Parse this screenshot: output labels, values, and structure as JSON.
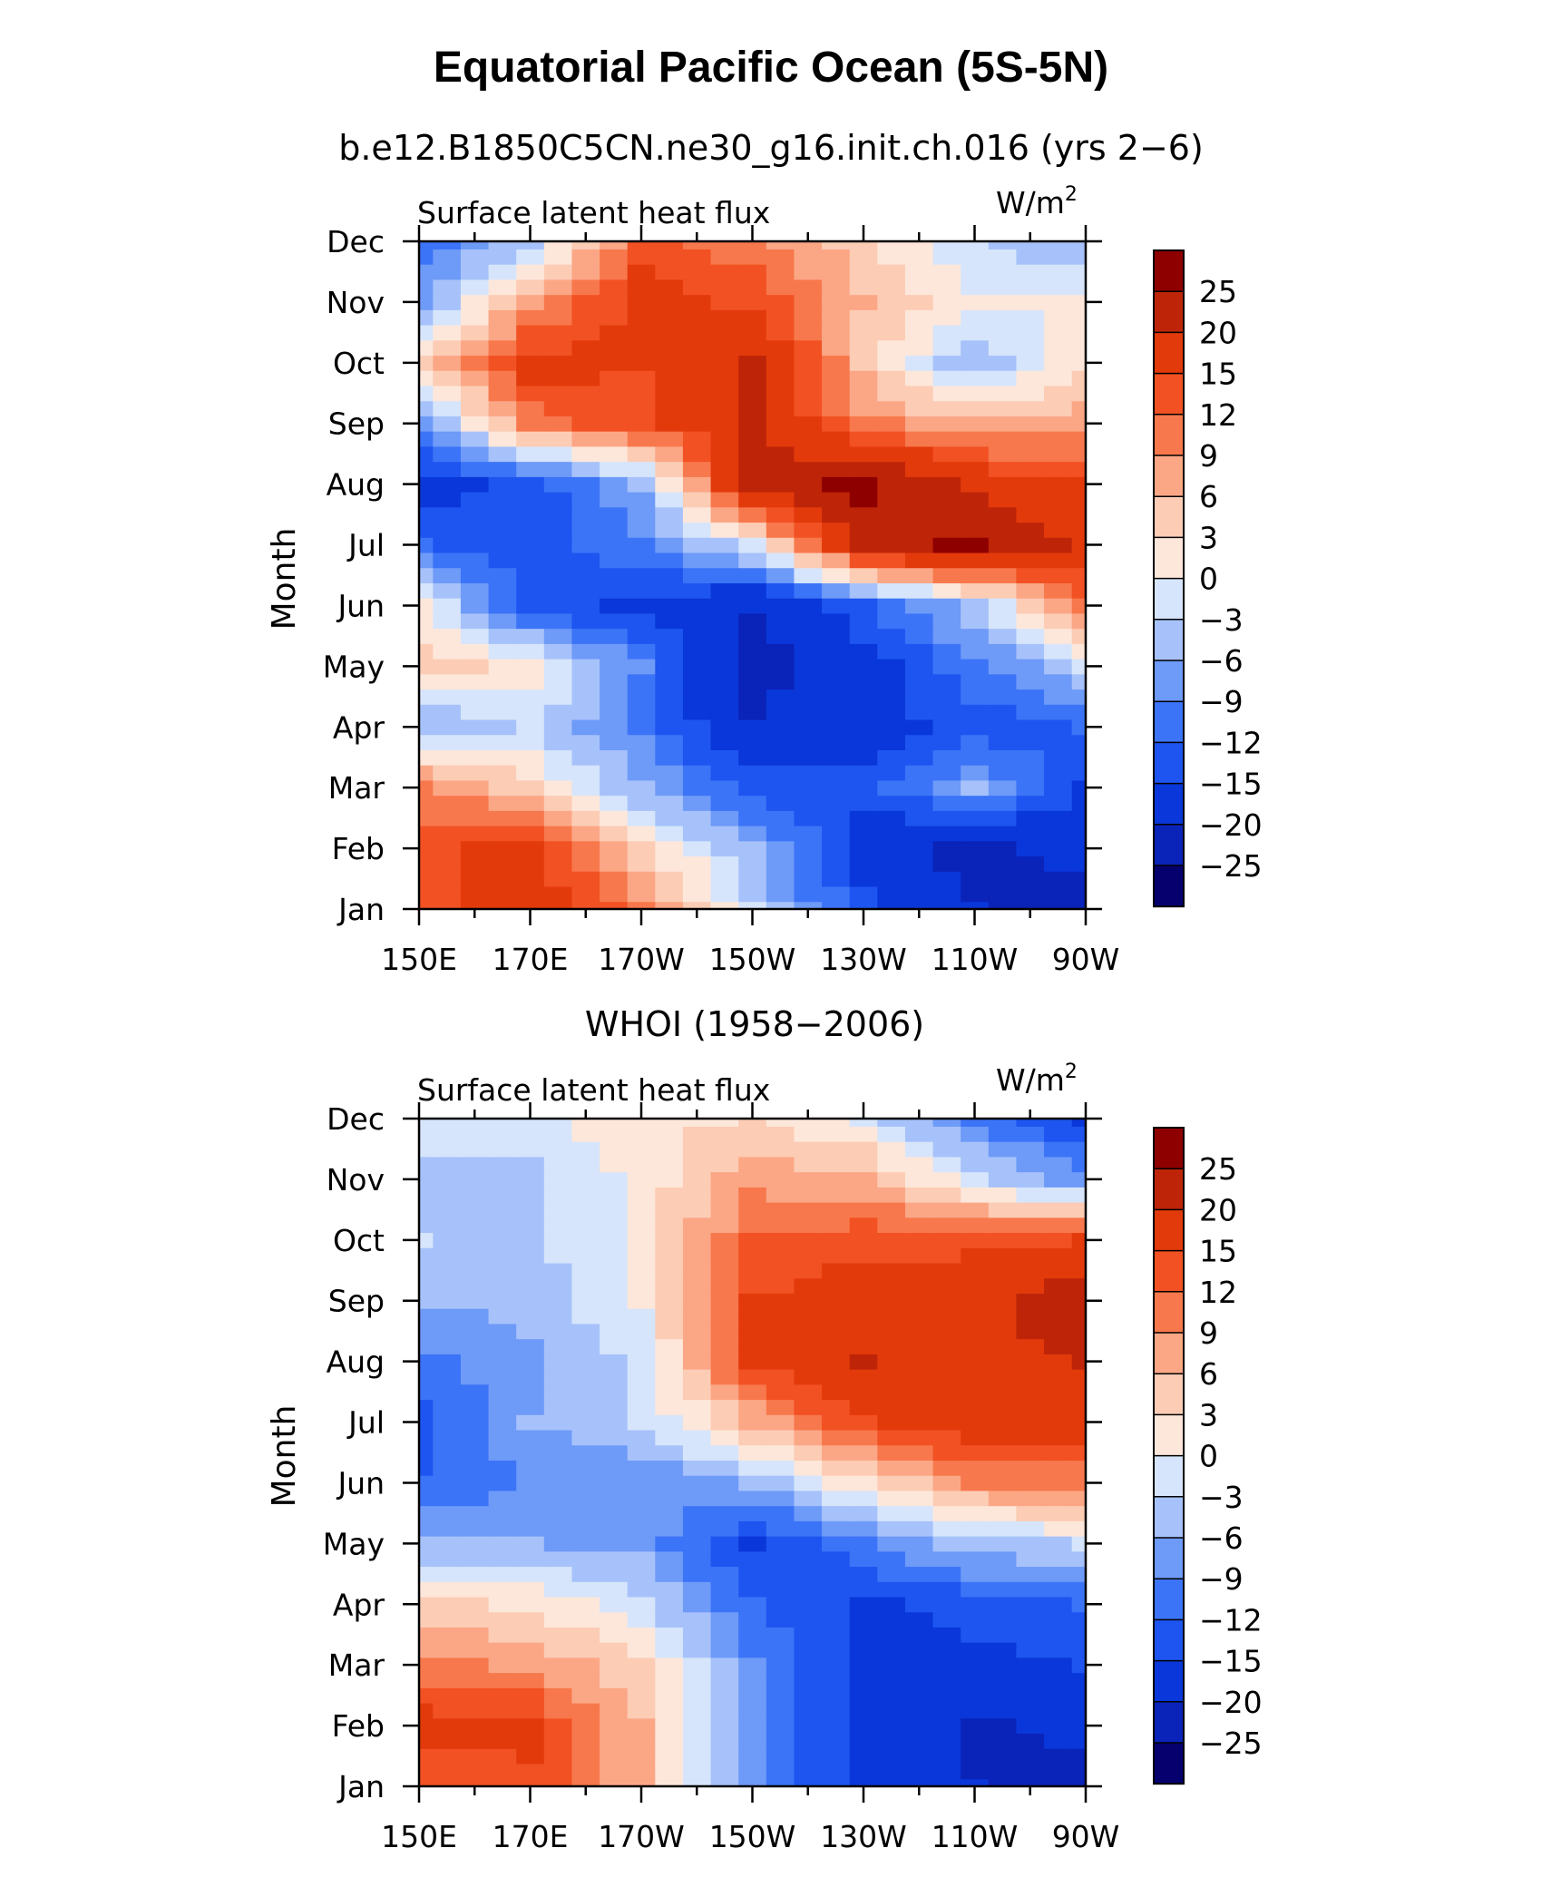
{
  "title": "Equatorial Pacific Ocean (5S-5N)",
  "chart_data": [
    {
      "type": "heatmap",
      "title": "b.e12.B1850C5CN.ne30_g16.init.ch.016 (yrs 2−6)",
      "subtitle": "Surface latent heat flux",
      "units": "W/m",
      "units_superscript": "2",
      "ylabel": "Month",
      "xlabel": "",
      "x": [
        "150E",
        "170E",
        "170W",
        "150W",
        "130W",
        "110W",
        "90W"
      ],
      "y": [
        "Jan",
        "Feb",
        "Mar",
        "Apr",
        "May",
        "Jun",
        "Jul",
        "Aug",
        "Sep",
        "Oct",
        "Nov",
        "Dec"
      ],
      "values": [
        [
          12,
          18,
          10,
          -3,
          -14,
          -20,
          -23
        ],
        [
          13,
          17,
          4,
          -6,
          -17,
          -22,
          -18
        ],
        [
          10,
          4,
          -6,
          -13,
          -14,
          -6,
          -16
        ],
        [
          -6,
          -3,
          -10,
          -20,
          -17,
          -14,
          -12
        ],
        [
          4,
          2,
          -9,
          -22,
          -17,
          -10,
          -3
        ],
        [
          1,
          -14,
          -16,
          -20,
          -13,
          -4,
          10
        ],
        [
          -12,
          -13,
          -10,
          -1,
          22,
          26,
          18
        ],
        [
          -17,
          -14,
          -6,
          23,
          26,
          18,
          15
        ],
        [
          -8,
          10,
          14,
          20,
          10,
          6,
          8
        ],
        [
          4,
          17,
          15,
          21,
          5,
          -6,
          2
        ],
        [
          -7,
          7,
          17,
          14,
          6,
          0,
          0
        ],
        [
          -11,
          -4,
          13,
          10,
          4,
          -3,
          -6
        ]
      ]
    },
    {
      "type": "heatmap",
      "title": "WHOI (1958−2006)",
      "subtitle": "Surface latent heat flux",
      "units": "W/m",
      "units_superscript": "2",
      "ylabel": "Month",
      "xlabel": "",
      "x": [
        "150E",
        "170E",
        "170W",
        "150W",
        "130W",
        "110W",
        "90W"
      ],
      "y": [
        "Jan",
        "Feb",
        "Mar",
        "Apr",
        "May",
        "Jun",
        "Jul",
        "Aug",
        "Sep",
        "Oct",
        "Nov",
        "Dec"
      ],
      "values": [
        [
          12,
          14,
          6,
          -9,
          -17,
          -20,
          -24
        ],
        [
          17,
          16,
          6,
          -9,
          -16,
          -21,
          -18
        ],
        [
          10,
          8,
          4,
          -9,
          -16,
          -16,
          -15
        ],
        [
          4,
          2,
          -2,
          -12,
          -16,
          -14,
          -12
        ],
        [
          -6,
          -6,
          -7,
          -16,
          -10,
          -4,
          -3
        ],
        [
          -12,
          -9,
          -9,
          -6,
          2,
          9,
          10
        ],
        [
          -14,
          -6,
          -3,
          6,
          14,
          18,
          17
        ],
        [
          -10,
          -7,
          -2,
          16,
          20,
          19,
          20
        ],
        [
          -6,
          -5,
          0,
          15,
          17,
          18,
          24
        ],
        [
          -3,
          -4,
          1,
          12,
          14,
          14,
          15
        ],
        [
          -4,
          -4,
          1,
          8,
          7,
          -2,
          -8
        ],
        [
          -2,
          -1,
          2,
          3,
          -1,
          -10,
          -16
        ]
      ]
    }
  ],
  "colorbar": {
    "labels": [
      "25",
      "20",
      "15",
      "12",
      "9",
      "6",
      "3",
      "0",
      "−3",
      "−6",
      "−9",
      "−12",
      "−15",
      "−20",
      "−25"
    ],
    "thresholds": [
      -25,
      -20,
      -15,
      -12,
      -9,
      -6,
      -3,
      0,
      3,
      6,
      9,
      12,
      15,
      20,
      25
    ],
    "colors": [
      "#05006e",
      "#0a23b8",
      "#0a37d9",
      "#1e55f0",
      "#3c74f7",
      "#6e9af8",
      "#a7c2fa",
      "#d6e5fb",
      "#fde7da",
      "#fcccb5",
      "#fba786",
      "#f7784c",
      "#f25123",
      "#e33a0c",
      "#be2508",
      "#8e0000"
    ]
  }
}
